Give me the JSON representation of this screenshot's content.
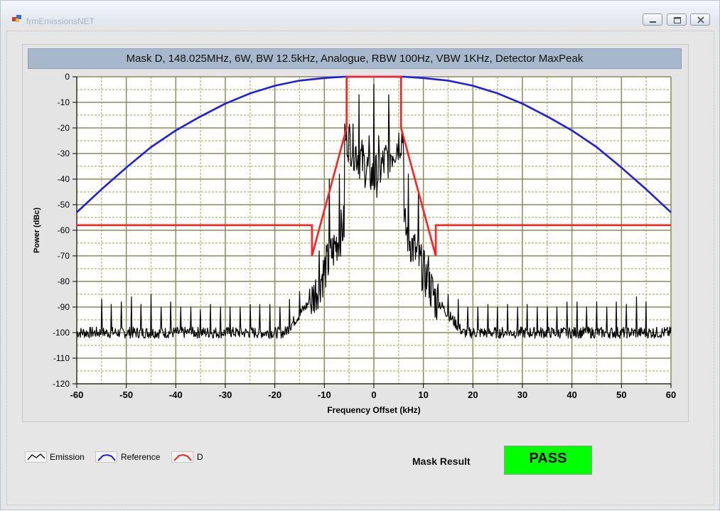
{
  "window": {
    "title": "frmEmissionsNET",
    "controls": [
      "minimize",
      "restore",
      "close"
    ]
  },
  "chart": {
    "title": "Mask D, 148.025MHz, 6W, BW 12.5kHz, Analogue, RBW 100Hz, VBW 1KHz, Detector MaxPeak"
  },
  "chart_data": {
    "type": "line",
    "title": "Mask D, 148.025MHz, 6W, BW 12.5kHz, Analogue, RBW 100Hz, VBW 1KHz, Detector MaxPeak",
    "xlabel": "Frequency Offset (kHz)",
    "ylabel": "Power (dBc)",
    "xlim": [
      -60,
      60
    ],
    "ylim": [
      -120,
      0
    ],
    "x_ticks": [
      -60,
      -50,
      -40,
      -30,
      -20,
      -10,
      0,
      10,
      20,
      30,
      40,
      50,
      60
    ],
    "x_tick_labels": [
      "-60",
      "-50",
      "-40",
      "-30",
      "-20",
      "-10",
      "0",
      "10",
      "20",
      "30",
      "40",
      "50",
      "60"
    ],
    "y_ticks": [
      0,
      -10,
      -20,
      -30,
      -40,
      -50,
      -60,
      -70,
      -80,
      -90,
      -100,
      -110,
      -120
    ],
    "y_tick_labels": [
      "0",
      "-10",
      "-20",
      "-30",
      "-40",
      "-50",
      "-60",
      "-70",
      "-80",
      "-90",
      "-100",
      "-110",
      "-120"
    ],
    "grid": true,
    "legend_position": "bottom-left",
    "series": [
      {
        "name": "Emission",
        "color": "#000000",
        "noise_floor": -100,
        "spikes": [
          {
            "x": -55,
            "y": -87
          },
          {
            "x": -53,
            "y": -89
          },
          {
            "x": -51,
            "y": -88
          },
          {
            "x": -49,
            "y": -86
          },
          {
            "x": -47,
            "y": -89
          },
          {
            "x": -45,
            "y": -85
          },
          {
            "x": -43,
            "y": -90
          },
          {
            "x": -41,
            "y": -88
          },
          {
            "x": -39,
            "y": -90
          },
          {
            "x": -37,
            "y": -90
          },
          {
            "x": -35,
            "y": -91
          },
          {
            "x": -33,
            "y": -89
          },
          {
            "x": -31,
            "y": -90
          },
          {
            "x": -29,
            "y": -90
          },
          {
            "x": -27,
            "y": -90
          },
          {
            "x": -25,
            "y": -89
          },
          {
            "x": -23,
            "y": -89
          },
          {
            "x": -21,
            "y": -89
          },
          {
            "x": -19,
            "y": -90
          },
          {
            "x": -17,
            "y": -87
          },
          {
            "x": -15,
            "y": -84
          },
          {
            "x": -13,
            "y": -83
          },
          {
            "x": -11,
            "y": -68
          },
          {
            "x": -9,
            "y": -40
          },
          {
            "x": -7,
            "y": -38
          },
          {
            "x": -5,
            "y": -20
          },
          {
            "x": -3,
            "y": -7
          },
          {
            "x": -1,
            "y": -23
          },
          {
            "x": 0,
            "y": -3
          },
          {
            "x": 1,
            "y": -23
          },
          {
            "x": 3,
            "y": -7
          },
          {
            "x": 5,
            "y": -22
          },
          {
            "x": 7,
            "y": -38
          },
          {
            "x": 9,
            "y": -44
          },
          {
            "x": 11,
            "y": -70
          },
          {
            "x": 13,
            "y": -81
          },
          {
            "x": 15,
            "y": -85
          },
          {
            "x": 17,
            "y": -87
          },
          {
            "x": 19,
            "y": -90
          },
          {
            "x": 21,
            "y": -90
          },
          {
            "x": 23,
            "y": -89
          },
          {
            "x": 25,
            "y": -90
          },
          {
            "x": 27,
            "y": -89
          },
          {
            "x": 29,
            "y": -90
          },
          {
            "x": 31,
            "y": -89
          },
          {
            "x": 33,
            "y": -90
          },
          {
            "x": 35,
            "y": -90
          },
          {
            "x": 37,
            "y": -90
          },
          {
            "x": 39,
            "y": -88
          },
          {
            "x": 41,
            "y": -88
          },
          {
            "x": 43,
            "y": -90
          },
          {
            "x": 45,
            "y": -88
          },
          {
            "x": 47,
            "y": -90
          },
          {
            "x": 49,
            "y": -88
          },
          {
            "x": 51,
            "y": -89
          },
          {
            "x": 53,
            "y": -86
          },
          {
            "x": 55,
            "y": -88
          }
        ]
      },
      {
        "name": "Reference",
        "color": "#1e1ee6",
        "x": [
          -60,
          -55,
          -50,
          -45,
          -40,
          -35,
          -30,
          -25,
          -20,
          -15,
          -10,
          -6,
          0,
          6,
          10,
          15,
          20,
          25,
          30,
          35,
          40,
          45,
          50,
          55,
          60
        ],
        "y": [
          -53,
          -44,
          -35.5,
          -27.5,
          -21,
          -15.5,
          -10.5,
          -6.5,
          -3.5,
          -1.5,
          -0.5,
          0,
          0,
          0,
          -0.5,
          -1.5,
          -3.5,
          -6.5,
          -10.5,
          -15.5,
          -21,
          -27.5,
          -35.5,
          -44,
          -53
        ]
      },
      {
        "name": "D",
        "color": "#ff2020",
        "x": [
          -60,
          -12.5,
          -12.5,
          -5.5,
          -5.5,
          5.5,
          5.5,
          12.5,
          12.5,
          60
        ],
        "y": [
          -58,
          -58,
          -70,
          -20,
          0,
          0,
          -20,
          -70,
          -58,
          -58
        ]
      }
    ]
  },
  "legend": {
    "items": [
      {
        "label": "Emission",
        "color": "#000000"
      },
      {
        "label": "Reference",
        "color": "#1e1ee6"
      },
      {
        "label": "D",
        "color": "#ff2020"
      }
    ]
  },
  "result": {
    "label": "Mask Result",
    "value": "PASS",
    "color": "#00ff00"
  }
}
